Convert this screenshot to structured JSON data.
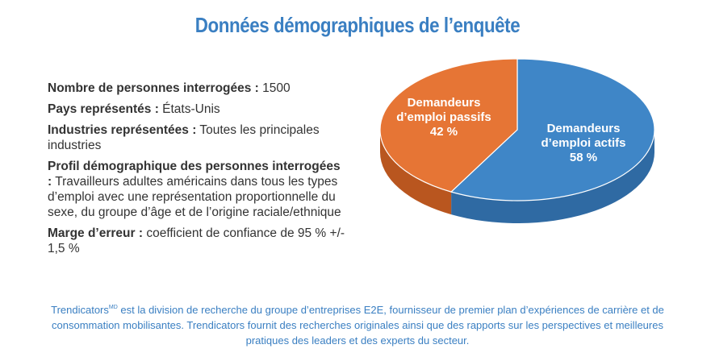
{
  "title": "Données démographiques de l’enquête",
  "facts": [
    {
      "label": "Nombre de personnes interrogées :",
      "value": " 1500"
    },
    {
      "label": "Pays représentés :",
      "value": " États-Unis"
    },
    {
      "label": "Industries représentées :",
      "value": " Toutes les principales industries"
    },
    {
      "label": "Profil démographique des personnes interrogées :",
      "value": " Travailleurs adultes américains dans tous les types d’emploi avec une représentation proportionnelle du sexe, du groupe d’âge et de l’origine raciale/ethnique"
    },
    {
      "label": "Marge d’erreur :",
      "value": " coefficient de confiance de 95 % +/- 1,5 %"
    }
  ],
  "chart_data": {
    "type": "pie",
    "title": "",
    "slices": [
      {
        "label_lines": [
          "Demandeurs",
          "d’emploi actifs"
        ],
        "value": 58,
        "value_label": "58 %",
        "color": "#3f86c7",
        "side_color": "#2f6aa3"
      },
      {
        "label_lines": [
          "Demandeurs",
          "d’emploi passifs"
        ],
        "value": 42,
        "value_label": "42 %",
        "color": "#e67535",
        "side_color": "#b9561f"
      }
    ]
  },
  "footer": {
    "brand": "Trendicators",
    "brand_mark": "MD",
    "text": " est la division de recherche du groupe d’entreprises E2E, fournisseur de premier plan d’expériences de carrière et de consommation mobilisantes. Trendicators fournit des recherches originales ainsi que des rapports sur les perspectives et meilleures pratiques des leaders et des experts du secteur."
  }
}
